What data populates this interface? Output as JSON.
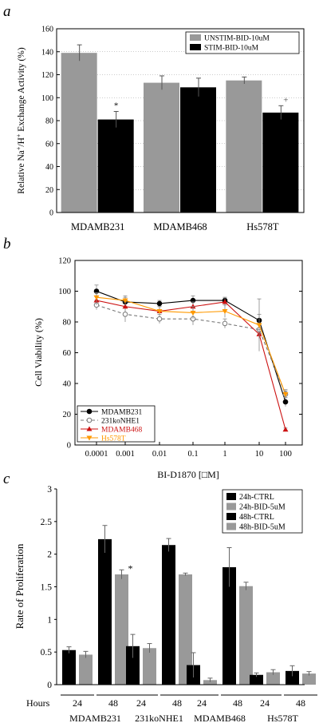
{
  "chart_data": [
    {
      "panel_letter": "a",
      "type": "bar",
      "categories": [
        "MDAMB231",
        "MDAMB468",
        "Hs578T"
      ],
      "series": [
        {
          "name": "UNSTIM-BID-10uM",
          "color": "#999999",
          "values": [
            139,
            113,
            115
          ],
          "errors": [
            7,
            6,
            3
          ]
        },
        {
          "name": "STIM-BID-10uM",
          "color": "#000000",
          "values": [
            81,
            109,
            87
          ],
          "errors": [
            7,
            8,
            6
          ]
        }
      ],
      "annotations": [
        {
          "category": "MDAMB231",
          "series": "STIM-BID-10uM",
          "text": "*"
        },
        {
          "category": "Hs578T",
          "series": "STIM-BID-10uM",
          "text": "+"
        }
      ],
      "ylabel_main": "Relative Na",
      "ylabel_sup1": "+",
      "ylabel_mid": "/H",
      "ylabel_sup2": "+",
      "ylabel_end": " Exchange Activity (%)",
      "xlabel": "",
      "ylim": [
        0,
        160
      ],
      "yticks": [
        0,
        20,
        40,
        60,
        80,
        100,
        120,
        140,
        160
      ],
      "legend_position": "top-right"
    },
    {
      "panel_letter": "b",
      "type": "line",
      "x": [
        0.0001,
        0.001,
        0.01,
        0.1,
        1,
        10,
        100
      ],
      "xtick_labels": [
        "0.0001",
        "0.001",
        "0.01",
        "0.1",
        "1",
        "10",
        "100"
      ],
      "x_scale": "log",
      "series": [
        {
          "name": "MDAMB231",
          "color": "#000000",
          "marker": "filled-circle",
          "dash": "solid",
          "values": [
            100,
            93,
            92,
            94,
            94,
            81,
            28
          ],
          "errors": [
            4,
            3,
            2,
            3,
            2,
            4,
            3
          ]
        },
        {
          "name": "231koNHE1",
          "color": "#777777",
          "marker": "open-circle",
          "dash": "dashed",
          "values": [
            91,
            85,
            82,
            82,
            79,
            75,
            33
          ],
          "errors": [
            3,
            5,
            3,
            4,
            3,
            4,
            3
          ]
        },
        {
          "name": "MDAMB468",
          "color": "#cc1111",
          "marker": "triangle",
          "dash": "solid",
          "values": [
            94,
            90,
            87,
            90,
            93,
            72,
            10
          ],
          "errors": [
            3,
            3,
            3,
            3,
            3,
            3,
            1
          ]
        },
        {
          "name": "Hs578T",
          "color": "#ff9900",
          "marker": "down-triangle",
          "dash": "solid",
          "values": [
            96,
            94,
            87,
            86,
            87,
            78,
            33
          ],
          "errors": [
            3,
            3,
            3,
            4,
            4,
            17,
            2
          ]
        }
      ],
      "xlabel": "BI-D1870 [□M]",
      "ylabel": "Cell Viability (%)",
      "ylim": [
        0,
        120
      ],
      "yticks": [
        0,
        20,
        40,
        60,
        80,
        100,
        120
      ],
      "legend_position": "bottom-left"
    },
    {
      "panel_letter": "c",
      "type": "bar",
      "categories": [
        "MDAMB231",
        "231koNHE1",
        "MDAMB468",
        "Hs578T"
      ],
      "series": [
        {
          "name": "24h-CTRL",
          "color": "#000000",
          "values": [
            0.53,
            0.59,
            0.3,
            0.15
          ],
          "errors": [
            0.05,
            0.18,
            0.19,
            0.03
          ]
        },
        {
          "name": "24h-BID-5uM",
          "color": "#999999",
          "values": [
            0.46,
            0.56,
            0.07,
            0.19
          ],
          "errors": [
            0.05,
            0.07,
            0.03,
            0.04
          ]
        },
        {
          "name": "48h-CTRL",
          "color": "#000000",
          "values": [
            2.23,
            2.14,
            1.8,
            0.21
          ],
          "errors": [
            0.21,
            0.1,
            0.3,
            0.08
          ]
        },
        {
          "name": "48h-BID-5uM",
          "color": "#999999",
          "values": [
            1.69,
            1.69,
            1.51,
            0.17
          ],
          "errors": [
            0.07,
            0.02,
            0.06,
            0.03
          ]
        }
      ],
      "annotations": [
        {
          "category": "MDAMB231",
          "series": "48h-BID-5uM",
          "text": "*"
        }
      ],
      "hours_label": "Hours",
      "hours_ticks": [
        "24",
        "48"
      ],
      "ylabel": "Rate of Proliferation",
      "xlabel": "",
      "ylim": [
        0,
        3
      ],
      "yticks": [
        0,
        0.5,
        1,
        1.5,
        2,
        2.5,
        3
      ],
      "legend_position": "top-right"
    }
  ]
}
